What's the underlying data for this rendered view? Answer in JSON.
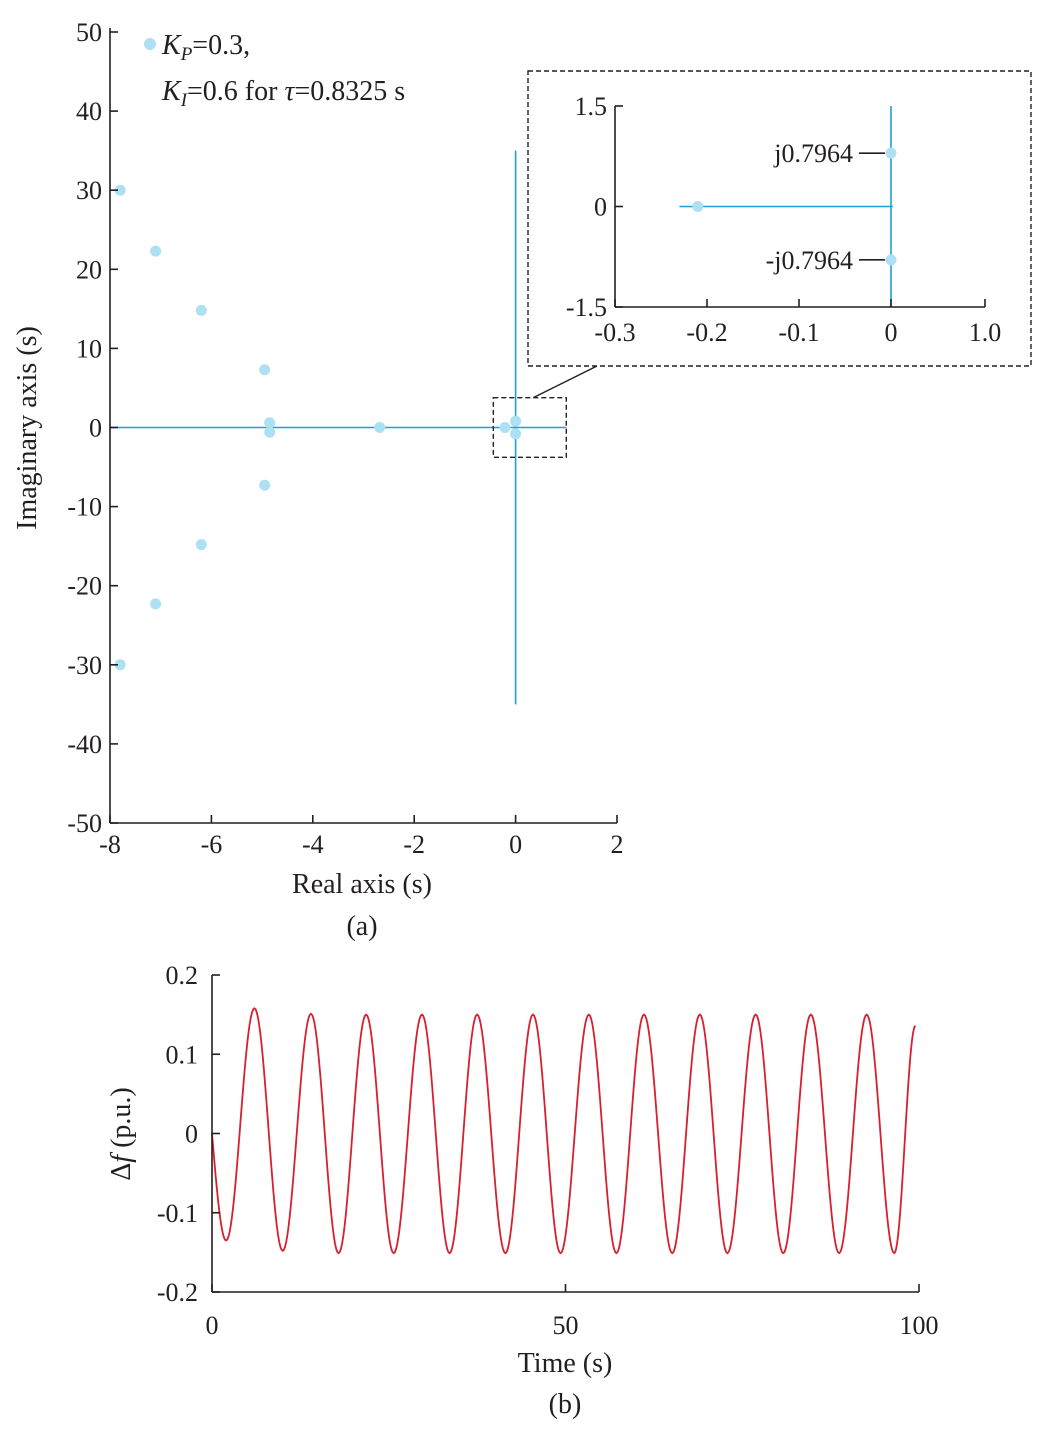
{
  "colors": {
    "pole": "#aee0f4",
    "locus": "#1ba1d8",
    "response": "#d7202f",
    "axis": "#231f20"
  },
  "chart_data": [
    {
      "type": "scatter",
      "caption": "(a)",
      "xlabel": "Real axis (s)",
      "ylabel": "Imaginary axis (s)",
      "xlim": [
        -8,
        2
      ],
      "ylim": [
        -50,
        50
      ],
      "xticks": [
        -8,
        -6,
        -4,
        -2,
        0,
        2
      ],
      "yticks": [
        50,
        40,
        30,
        20,
        10,
        0,
        -10,
        -20,
        -30,
        -40,
        -50
      ],
      "xtick_labels": [
        "-8",
        "-6",
        "-4",
        "-2",
        "0",
        "2"
      ],
      "ytick_labels": [
        "50",
        "40",
        "30",
        "20",
        "10",
        "0",
        "-10",
        "-20",
        "-30",
        "-40",
        "-50"
      ],
      "legend": {
        "line1_k": "K",
        "line1_sub": "P",
        "line1_rest": "=0.3,",
        "line2_k": "K",
        "line2_sub": "I",
        "line2_mid": "=0.6 for ",
        "line2_tau": "τ",
        "line2_rest": "=0.8325 s",
        "position": "top-left"
      },
      "points": [
        {
          "x": -7.8,
          "y": 30
        },
        {
          "x": -7.8,
          "y": -30
        },
        {
          "x": -7.1,
          "y": 22.3
        },
        {
          "x": -7.1,
          "y": -22.3
        },
        {
          "x": -6.2,
          "y": 14.8
        },
        {
          "x": -6.2,
          "y": -14.8
        },
        {
          "x": -4.95,
          "y": 7.3
        },
        {
          "x": -4.95,
          "y": -7.3
        },
        {
          "x": -4.85,
          "y": 0.6
        },
        {
          "x": -4.85,
          "y": -0.6
        },
        {
          "x": -2.68,
          "y": 0
        },
        {
          "x": -0.21,
          "y": 0
        },
        {
          "x": 0,
          "y": 0.7964
        },
        {
          "x": 0,
          "y": -0.7964
        }
      ],
      "real_axis_line": {
        "x": [
          -8,
          1
        ]
      },
      "imag_axis_line": {
        "y": [
          -35,
          35
        ]
      },
      "zoom_box": {
        "x": [
          -0.4,
          1
        ],
        "y": [
          -2,
          2
        ]
      }
    },
    {
      "type": "scatter",
      "role": "inset",
      "xlim": [
        -0.3,
        1.0
      ],
      "ylim": [
        -1.5,
        1.5
      ],
      "xticks": [
        -0.3,
        -0.2,
        -0.1,
        0,
        1.0
      ],
      "xtick_labels": [
        "-0.3",
        "-0.2",
        "-0.1",
        "0",
        "1.0"
      ],
      "yticks": [
        1.5,
        0,
        -1.5
      ],
      "ytick_labels": [
        "1.5",
        "0",
        "-1.5"
      ],
      "points": [
        {
          "x": -0.21,
          "y": 0
        },
        {
          "x": 0,
          "y": 0.7964
        },
        {
          "x": 0,
          "y": -0.7964
        }
      ],
      "annotations": [
        {
          "text": "j0.7964",
          "x": 0,
          "y": 0.7964
        },
        {
          "text": "-j0.7964",
          "x": 0,
          "y": -0.7964
        }
      ],
      "real_axis_line": {
        "x": [
          -0.23,
          0.02
        ]
      },
      "imag_axis_line": {
        "y": [
          -1.5,
          1.5
        ]
      }
    },
    {
      "type": "line",
      "caption": "(b)",
      "xlabel": "Time (s)",
      "ylabel_symbol": "Δ",
      "ylabel_var": "f",
      "ylabel_unit": " (p.u.)",
      "xlim": [
        0,
        100
      ],
      "ylim": [
        -0.2,
        0.2
      ],
      "xticks": [
        0,
        50,
        100
      ],
      "xtick_labels": [
        "0",
        "50",
        "100"
      ],
      "yticks": [
        0.2,
        0.1,
        0,
        -0.1,
        -0.2
      ],
      "ytick_labels": [
        "0.2",
        "0.1",
        "0",
        "-0.1",
        "-0.2"
      ],
      "series": [
        {
          "description_period_s": 7.89,
          "values": [
            {
              "t": 0,
              "y": 0
            },
            {
              "t": 2.0,
              "y": -0.135
            },
            {
              "t": 6.0,
              "y": 0.158
            },
            {
              "t": 10.0,
              "y": -0.148
            },
            {
              "t": 14.0,
              "y": 0.151
            },
            {
              "t": 17.9,
              "y": -0.151
            },
            {
              "t": 21.8,
              "y": 0.15
            },
            {
              "t": 25.7,
              "y": -0.151
            },
            {
              "t": 29.7,
              "y": 0.15
            },
            {
              "t": 33.6,
              "y": -0.151
            },
            {
              "t": 37.5,
              "y": 0.15
            },
            {
              "t": 41.5,
              "y": -0.151
            },
            {
              "t": 45.4,
              "y": 0.15
            },
            {
              "t": 49.3,
              "y": -0.151
            },
            {
              "t": 53.3,
              "y": 0.15
            },
            {
              "t": 57.2,
              "y": -0.151
            },
            {
              "t": 61.1,
              "y": 0.15
            },
            {
              "t": 65.1,
              "y": -0.151
            },
            {
              "t": 69.0,
              "y": 0.15
            },
            {
              "t": 72.9,
              "y": -0.151
            },
            {
              "t": 76.9,
              "y": 0.15
            },
            {
              "t": 80.8,
              "y": -0.151
            },
            {
              "t": 84.7,
              "y": 0.15
            },
            {
              "t": 88.7,
              "y": -0.151
            },
            {
              "t": 92.6,
              "y": 0.15
            },
            {
              "t": 96.5,
              "y": -0.151
            },
            {
              "t": 99.5,
              "y": 0.136
            }
          ]
        }
      ]
    }
  ]
}
